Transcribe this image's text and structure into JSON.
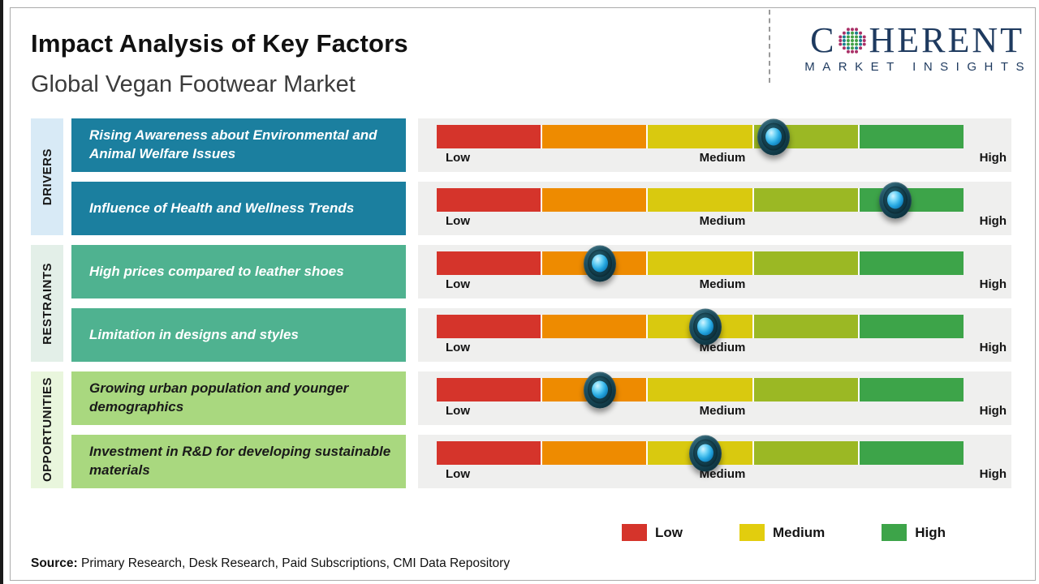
{
  "header": {
    "title": "Impact Analysis of Key Factors",
    "subtitle": "Global Vegan Footwear Market"
  },
  "logo": {
    "brand_first_letter": "C",
    "brand_rest": "HERENT",
    "tagline": "MARKET INSIGHTS",
    "brand_color": "#1e3a5f",
    "globe_icon": "dotted-globe-icon"
  },
  "chart_data": {
    "type": "bar",
    "title": "Impact Analysis of Key Factors",
    "subtitle": "Global Vegan Footwear Market",
    "scale": {
      "min_label": "Low",
      "mid_label": "Medium",
      "max_label": "High"
    },
    "segment_colors": [
      "#d5342b",
      "#ee8b00",
      "#d9c90f",
      "#9bb824",
      "#3da449"
    ],
    "groups": [
      "DRIVERS",
      "RESTRAINTS",
      "OPPORTUNITIES"
    ],
    "group_colors": {
      "drivers_strip": "#d8eaf6",
      "drivers_box": "#1b7f9f",
      "restraints_strip": "#e3efe8",
      "restraints_box": "#4fb290",
      "opportunities_strip": "#e9f6dd",
      "opportunities_box": "#a9d87f"
    },
    "rows": [
      {
        "group": "DRIVERS",
        "factor": "Rising Awareness about Environmental and Animal Welfare Issues",
        "impact_pct": 64,
        "impact_level": "Medium-High"
      },
      {
        "group": "DRIVERS",
        "factor": "Influence of Health and Wellness Trends",
        "impact_pct": 87,
        "impact_level": "High"
      },
      {
        "group": "RESTRAINTS",
        "factor": "High prices compared to leather shoes",
        "impact_pct": 31,
        "impact_level": "Low-Medium"
      },
      {
        "group": "RESTRAINTS",
        "factor": "Limitation in designs and styles",
        "impact_pct": 51,
        "impact_level": "Medium"
      },
      {
        "group": "OPPORTUNITIES",
        "factor": "Growing urban population and younger demographics",
        "impact_pct": 31,
        "impact_level": "Low-Medium"
      },
      {
        "group": "OPPORTUNITIES",
        "factor": "Investment in R&D for developing sustainable materials",
        "impact_pct": 51,
        "impact_level": "Medium"
      }
    ],
    "legend_position": "bottom-right",
    "grid": false
  },
  "legend": {
    "items": [
      {
        "label": "Low",
        "color": "#d5342b"
      },
      {
        "label": "Medium",
        "color": "#e2cd0e"
      },
      {
        "label": "High",
        "color": "#3da449"
      }
    ]
  },
  "source": {
    "label": "Source:",
    "text": " Primary Research, Desk Research, Paid Subscriptions, CMI Data Repository"
  }
}
